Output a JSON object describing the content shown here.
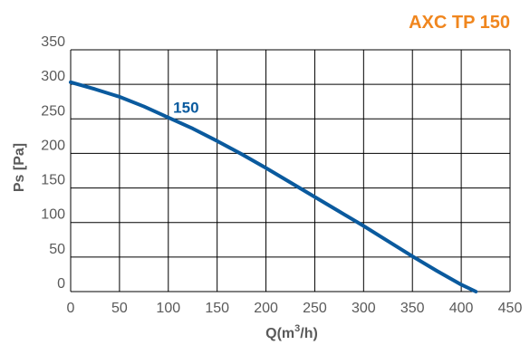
{
  "chart_data": {
    "type": "line",
    "title": "AXC TP 150",
    "xlabel_main": "Q(m",
    "xlabel_sup": "3",
    "xlabel_end": "/h)",
    "ylabel": "Ps [Pa]",
    "xlim": [
      0,
      450
    ],
    "ylim": [
      0,
      350
    ],
    "xticks": [
      0,
      50,
      100,
      150,
      200,
      250,
      300,
      350,
      400,
      450
    ],
    "yticks": [
      0,
      50,
      100,
      150,
      200,
      250,
      300,
      350
    ],
    "grid": true,
    "series": [
      {
        "name": "150",
        "color": "#0a5a9e",
        "x": [
          0,
          25,
          50,
          75,
          100,
          125,
          150,
          175,
          200,
          225,
          250,
          275,
          300,
          325,
          350,
          375,
          400,
          415
        ],
        "y": [
          303,
          293,
          282,
          268,
          252,
          236,
          218,
          199,
          179,
          158,
          137,
          116,
          95,
          73,
          51,
          30,
          10,
          0
        ]
      }
    ]
  },
  "colors": {
    "title": "#f0861e",
    "axis_text": "#5a5a5a",
    "grid": "#000000",
    "series": "#0a5a9e"
  }
}
